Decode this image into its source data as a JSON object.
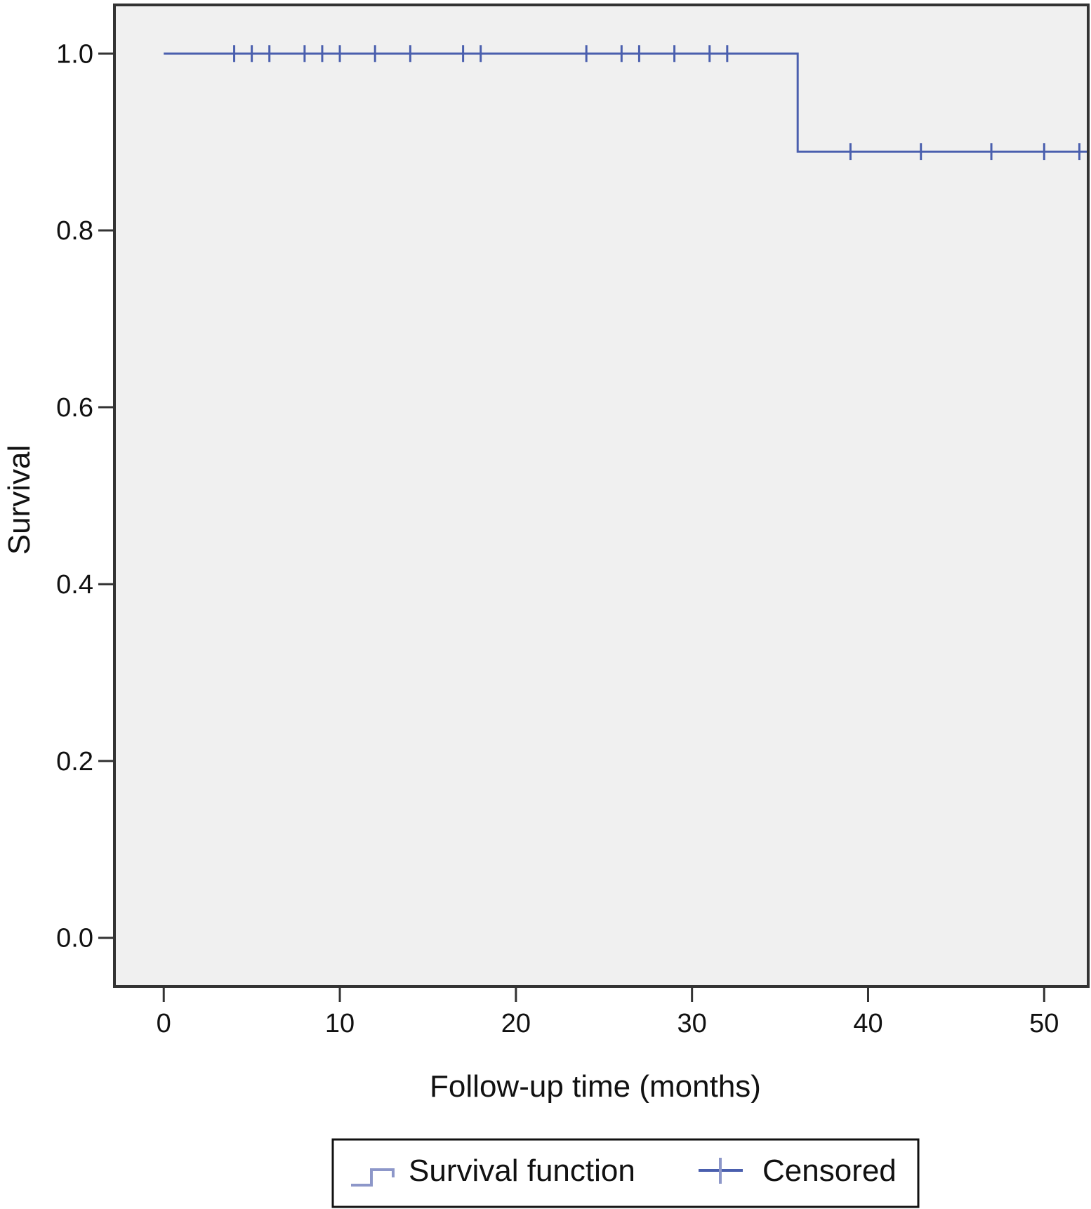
{
  "chart_data": {
    "type": "line",
    "title": "",
    "xlabel": "Follow-up time (months)",
    "ylabel": "Survival",
    "xlim": [
      -2.8,
      52.5
    ],
    "ylim": [
      -0.055,
      1.055
    ],
    "xticks": [
      0,
      10,
      20,
      30,
      40,
      50
    ],
    "xtick_labels": [
      "0",
      "10",
      "20",
      "30",
      "40",
      "50"
    ],
    "yticks": [
      0.0,
      0.2,
      0.4,
      0.6,
      0.8,
      1.0
    ],
    "ytick_labels": [
      "0.0",
      "0.2",
      "0.4",
      "0.6",
      "0.8",
      "1.0"
    ],
    "grid": false,
    "legend_position": "bottom-center",
    "colors": {
      "series": "#4a5fae",
      "plot_background": "#f0f0f0",
      "frame": "#333333"
    },
    "series": [
      {
        "name": "Survival function",
        "kind": "step",
        "x": [
          0,
          36,
          36,
          52.5
        ],
        "y": [
          1.0,
          1.0,
          0.889,
          0.889
        ]
      },
      {
        "name": "Censored",
        "kind": "marker",
        "marker": "plus",
        "x": [
          4,
          5,
          6,
          8,
          9,
          10,
          12,
          14,
          17,
          18,
          24,
          26,
          27,
          29,
          31,
          32,
          39,
          43,
          47,
          50,
          52
        ],
        "y": [
          1.0,
          1.0,
          1.0,
          1.0,
          1.0,
          1.0,
          1.0,
          1.0,
          1.0,
          1.0,
          1.0,
          1.0,
          1.0,
          1.0,
          1.0,
          1.0,
          0.889,
          0.889,
          0.889,
          0.889,
          0.889
        ]
      }
    ]
  }
}
